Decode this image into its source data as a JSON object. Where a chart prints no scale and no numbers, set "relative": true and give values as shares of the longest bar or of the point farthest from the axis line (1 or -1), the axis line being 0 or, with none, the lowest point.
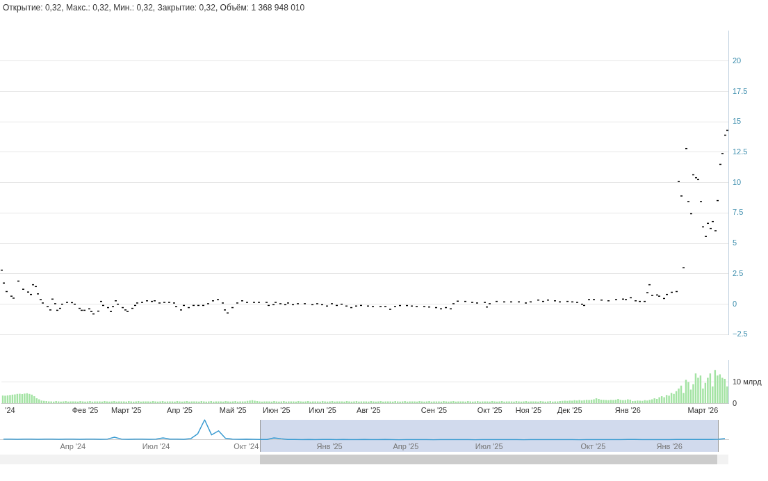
{
  "chart_data": [
    {
      "type": "candlestick",
      "title": "Открытие: 0,32, Макс.: 0,32, Мин.: 0,32, Закрытие: 0,32, Объём: 1 368 948 010",
      "color": "#000000",
      "grid": "y",
      "tick_labels": "y",
      "ylim": [
        -2.5,
        22.5
      ],
      "yticks": [
        {
          "value": -2.5,
          "label": "−2.5"
        },
        0,
        2.5,
        5,
        7.5,
        10,
        12.5,
        15,
        17.5,
        20
      ],
      "categories": [
        null,
        null,
        null,
        null,
        null,
        null,
        null,
        null,
        null,
        null,
        null,
        null,
        null,
        null,
        null,
        null,
        null,
        null,
        null,
        null,
        null,
        null,
        null,
        null,
        null,
        null,
        null,
        null,
        null,
        null,
        null,
        null,
        null,
        null,
        null,
        null,
        null,
        null,
        null,
        null,
        null,
        null,
        null,
        null,
        null,
        null,
        null,
        null,
        null,
        null,
        null,
        null,
        null,
        null,
        null,
        null,
        null,
        null,
        null,
        null,
        null,
        null,
        null,
        null,
        null,
        null,
        null,
        null,
        null,
        null,
        null,
        null,
        null,
        null,
        null,
        null,
        null,
        null,
        null,
        null,
        null,
        null,
        null,
        null,
        null,
        null,
        null,
        null,
        null,
        null,
        null,
        null,
        null,
        null,
        null,
        null,
        null,
        null,
        null,
        null,
        null,
        null,
        null,
        null,
        null,
        null,
        null,
        null,
        null,
        null,
        null,
        null,
        null,
        null,
        null,
        null,
        null,
        null,
        null,
        null,
        null,
        null,
        null,
        null,
        null,
        null,
        null,
        null,
        null,
        null,
        null,
        null,
        null,
        null,
        null,
        null,
        null,
        null,
        null,
        null,
        null,
        null,
        null,
        null,
        null,
        null,
        null,
        null,
        null,
        null,
        null,
        null,
        null,
        null,
        null,
        null,
        null,
        null,
        null,
        null,
        null,
        null,
        null,
        null,
        null,
        null,
        null,
        null,
        null,
        null,
        null,
        null,
        null,
        null,
        null,
        null,
        null,
        null,
        null,
        null,
        null,
        null,
        null,
        null,
        null,
        null,
        null,
        null,
        null,
        null,
        null,
        null,
        null,
        null,
        null,
        null,
        null,
        null,
        null,
        null,
        null,
        null,
        null,
        null,
        null,
        null,
        null,
        null,
        null,
        null,
        null,
        null,
        null,
        null,
        null,
        null,
        null,
        null,
        null,
        null,
        null,
        null,
        null,
        null,
        null,
        null,
        null,
        null,
        null,
        null,
        null,
        null,
        null,
        null,
        null,
        null,
        null,
        null,
        null,
        null,
        null,
        null,
        null,
        null,
        null,
        null,
        null,
        null,
        null,
        null,
        null,
        null,
        null,
        null,
        null,
        null,
        null,
        null,
        null,
        null,
        null,
        null,
        null,
        null,
        null,
        null,
        null,
        null,
        null,
        null,
        null,
        null,
        null,
        null,
        null,
        null,
        null,
        null,
        null,
        null,
        null,
        null,
        null,
        null,
        null,
        null,
        null,
        null,
        null,
        null,
        null,
        null,
        null,
        null,
        null,
        null,
        null,
        null,
        null,
        null
      ],
      "ohlc": [
        [
          2.8,
          2.8,
          2.8,
          2.8
        ],
        [
          1.74,
          1.74,
          1.74,
          1.74
        ],
        [
          1.04,
          1.04,
          1.04,
          1.04
        ],
        null,
        [
          0.66,
          0.66,
          0.66,
          0.66
        ],
        [
          0.5,
          0.5,
          0.5,
          0.5
        ],
        null,
        [
          1.9,
          1.9,
          1.9,
          1.9
        ],
        null,
        [
          1.23,
          1.23,
          1.23,
          1.23
        ],
        null,
        [
          1.0,
          1.0,
          1.0,
          1.0
        ],
        [
          0.8,
          0.8,
          0.8,
          0.8
        ],
        [
          1.6,
          1.6,
          1.6,
          1.6
        ],
        [
          1.45,
          1.45,
          1.45,
          1.45
        ],
        [
          0.85,
          0.85,
          0.85,
          0.85
        ],
        [
          0.38,
          0.38,
          0.38,
          0.38
        ],
        [
          0.1,
          0.1,
          0.1,
          0.1
        ],
        null,
        [
          -0.2,
          -0.2,
          -0.2,
          -0.2
        ],
        [
          -0.47,
          -0.47,
          -0.47,
          -0.47
        ],
        [
          0.42,
          0.42,
          0.42,
          0.42
        ],
        [
          0.04,
          0.04,
          0.04,
          0.04
        ],
        [
          -0.5,
          -0.5,
          -0.5,
          -0.5
        ],
        [
          -0.34,
          -0.34,
          -0.34,
          -0.34
        ],
        [
          0,
          0,
          0,
          0
        ],
        null,
        [
          0.15,
          0.15,
          0.15,
          0.15
        ],
        null,
        [
          0.13,
          0.13,
          0.13,
          0.13
        ],
        [
          0,
          0,
          0,
          0
        ],
        null,
        [
          -0.34,
          -0.34,
          -0.34,
          -0.34
        ],
        [
          -0.5,
          -0.5,
          -0.5,
          -0.5
        ],
        [
          -0.5,
          -0.5,
          -0.5,
          -0.5
        ],
        null,
        [
          -0.38,
          -0.38,
          -0.38,
          -0.38
        ],
        [
          -0.6,
          -0.6,
          -0.6,
          -0.6
        ],
        [
          -0.8,
          -0.8,
          -0.8,
          -0.8
        ],
        null,
        [
          -0.57,
          -0.57,
          -0.57,
          -0.57
        ],
        [
          0.23,
          0.23,
          0.23,
          0.23
        ],
        [
          -0.1,
          -0.1,
          -0.1,
          -0.1
        ],
        null,
        [
          -0.28,
          -0.28,
          -0.28,
          -0.28
        ],
        [
          -0.6,
          -0.6,
          -0.6,
          -0.6
        ],
        [
          -0.2,
          -0.2,
          -0.2,
          -0.2
        ],
        [
          0.28,
          0.28,
          0.28,
          0.28
        ],
        [
          0,
          0,
          0,
          0
        ],
        null,
        [
          -0.28,
          -0.28,
          -0.28,
          -0.28
        ],
        [
          -0.47,
          -0.47,
          -0.47,
          -0.47
        ],
        [
          -0.6,
          -0.6,
          -0.6,
          -0.6
        ],
        null,
        [
          -0.34,
          -0.34,
          -0.34,
          -0.34
        ],
        [
          -0.1,
          -0.1,
          -0.1,
          -0.1
        ],
        [
          0.1,
          0.1,
          0.1,
          0.1
        ],
        null,
        [
          0.15,
          0.15,
          0.15,
          0.15
        ],
        null,
        [
          0.28,
          0.28,
          0.28,
          0.28
        ],
        null,
        [
          0.23,
          0.23,
          0.23,
          0.23
        ],
        [
          0.28,
          0.28,
          0.28,
          0.28
        ],
        null,
        [
          0.1,
          0.1,
          0.1,
          0.1
        ],
        null,
        [
          0.15,
          0.15,
          0.15,
          0.15
        ],
        null,
        [
          0.15,
          0.15,
          0.15,
          0.15
        ],
        null,
        [
          0.1,
          0.1,
          0.1,
          0.1
        ],
        [
          -0.2,
          -0.2,
          -0.2,
          -0.2
        ],
        null,
        [
          -0.47,
          -0.47,
          -0.47,
          -0.47
        ],
        [
          -0.1,
          -0.1,
          -0.1,
          -0.1
        ],
        null,
        [
          -0.28,
          -0.28,
          -0.28,
          -0.28
        ],
        null,
        [
          -0.1,
          -0.1,
          -0.1,
          -0.1
        ],
        null,
        [
          -0.1,
          -0.1,
          -0.1,
          -0.1
        ],
        null,
        [
          -0.1,
          -0.1,
          -0.1,
          -0.1
        ],
        null,
        [
          0.04,
          0.04,
          0.04,
          0.04
        ],
        null,
        [
          0.28,
          0.28,
          0.28,
          0.28
        ],
        null,
        [
          0.38,
          0.38,
          0.38,
          0.38
        ],
        null,
        [
          0.1,
          0.1,
          0.1,
          0.1
        ],
        [
          -0.47,
          -0.47,
          -0.47,
          -0.47
        ],
        [
          -0.72,
          -0.72,
          -0.72,
          -0.72
        ],
        null,
        [
          -0.28,
          -0.28,
          -0.28,
          -0.28
        ],
        null,
        [
          0.1,
          0.1,
          0.1,
          0.1
        ],
        null,
        [
          0.28,
          0.28,
          0.28,
          0.28
        ],
        null,
        [
          0.15,
          0.15,
          0.15,
          0.15
        ],
        null,
        null,
        [
          0.15,
          0.15,
          0.15,
          0.15
        ],
        null,
        [
          0.15,
          0.15,
          0.15,
          0.15
        ],
        null,
        null,
        [
          0.15,
          0.15,
          0.15,
          0.15
        ],
        [
          -0.1,
          -0.1,
          -0.1,
          -0.1
        ],
        null,
        [
          -0.04,
          -0.04,
          -0.04,
          -0.04
        ],
        [
          0.15,
          0.15,
          0.15,
          0.15
        ],
        null,
        [
          0.04,
          0.04,
          0.04,
          0.04
        ],
        null,
        [
          -0.04,
          -0.04,
          -0.04,
          -0.04
        ],
        [
          0.1,
          0.1,
          0.1,
          0.1
        ],
        null,
        [
          -0.04,
          -0.04,
          -0.04,
          -0.04
        ],
        null,
        [
          0.04,
          0.04,
          0.04,
          0.04
        ],
        null,
        null,
        [
          0.04,
          0.04,
          0.04,
          0.04
        ],
        null,
        null,
        [
          -0.04,
          -0.04,
          -0.04,
          -0.04
        ],
        null,
        [
          0.04,
          0.04,
          0.04,
          0.04
        ],
        null,
        [
          -0.04,
          -0.04,
          -0.04,
          -0.04
        ],
        null,
        [
          -0.15,
          -0.15,
          -0.15,
          -0.15
        ],
        null,
        [
          0.04,
          0.04,
          0.04,
          0.04
        ],
        null,
        [
          -0.1,
          -0.1,
          -0.1,
          -0.1
        ],
        null,
        [
          0,
          0,
          0,
          0
        ],
        null,
        [
          -0.15,
          -0.15,
          -0.15,
          -0.15
        ],
        null,
        [
          -0.28,
          -0.28,
          -0.28,
          -0.28
        ],
        null,
        [
          -0.15,
          -0.15,
          -0.15,
          -0.15
        ],
        null,
        [
          -0.1,
          -0.1,
          -0.1,
          -0.1
        ],
        null,
        null,
        [
          -0.15,
          -0.15,
          -0.15,
          -0.15
        ],
        null,
        [
          -0.19,
          -0.19,
          -0.19,
          -0.19
        ],
        null,
        null,
        [
          -0.19,
          -0.19,
          -0.19,
          -0.19
        ],
        null,
        [
          -0.19,
          -0.19,
          -0.19,
          -0.19
        ],
        null,
        [
          -0.42,
          -0.42,
          -0.42,
          -0.42
        ],
        null,
        [
          -0.19,
          -0.19,
          -0.19,
          -0.19
        ],
        null,
        [
          -0.11,
          -0.11,
          -0.11,
          -0.11
        ],
        null,
        null,
        [
          -0.11,
          -0.11,
          -0.11,
          -0.11
        ],
        null,
        [
          -0.15,
          -0.15,
          -0.15,
          -0.15
        ],
        null,
        [
          -0.19,
          -0.19,
          -0.19,
          -0.19
        ],
        null,
        null,
        [
          -0.19,
          -0.19,
          -0.19,
          -0.19
        ],
        null,
        [
          -0.23,
          -0.23,
          -0.23,
          -0.23
        ],
        null,
        null,
        [
          -0.28,
          -0.28,
          -0.28,
          -0.28
        ],
        null,
        [
          -0.38,
          -0.38,
          -0.38,
          -0.38
        ],
        null,
        [
          -0.28,
          -0.28,
          -0.28,
          -0.28
        ],
        null,
        [
          -0.38,
          -0.38,
          -0.38,
          -0.38
        ],
        [
          0.04,
          0.04,
          0.04,
          0.04
        ],
        null,
        [
          0.25,
          0.25,
          0.25,
          0.25
        ],
        null,
        null,
        [
          0.23,
          0.23,
          0.23,
          0.23
        ],
        null,
        null,
        [
          0.15,
          0.15,
          0.15,
          0.15
        ],
        null,
        [
          0.1,
          0.1,
          0.1,
          0.1
        ],
        null,
        null,
        [
          0.15,
          0.15,
          0.15,
          0.15
        ],
        [
          -0.23,
          -0.23,
          -0.23,
          -0.23
        ],
        [
          0.04,
          0.04,
          0.04,
          0.04
        ],
        null,
        null,
        [
          0.23,
          0.23,
          0.23,
          0.23
        ],
        null,
        null,
        [
          0.19,
          0.19,
          0.19,
          0.19
        ],
        null,
        null,
        [
          0.19,
          0.19,
          0.19,
          0.19
        ],
        null,
        null,
        [
          0.19,
          0.19,
          0.19,
          0.19
        ],
        null,
        null,
        [
          0.1,
          0.1,
          0.1,
          0.1
        ],
        null,
        [
          0.19,
          0.19,
          0.19,
          0.19
        ],
        null,
        null,
        [
          0.34,
          0.34,
          0.34,
          0.34
        ],
        null,
        [
          0.23,
          0.23,
          0.23,
          0.23
        ],
        null,
        [
          0.34,
          0.34,
          0.34,
          0.34
        ],
        null,
        null,
        [
          0.28,
          0.28,
          0.28,
          0.28
        ],
        null,
        [
          0.19,
          0.19,
          0.19,
          0.19
        ],
        null,
        null,
        [
          0.23,
          0.23,
          0.23,
          0.23
        ],
        null,
        [
          0.19,
          0.19,
          0.19,
          0.19
        ],
        null,
        [
          0.15,
          0.15,
          0.15,
          0.15
        ],
        null,
        [
          0,
          0,
          0,
          0
        ],
        [
          -0.1,
          -0.1,
          -0.1,
          -0.1
        ],
        null,
        [
          0.38,
          0.38,
          0.38,
          0.38
        ],
        null,
        [
          0.38,
          0.38,
          0.38,
          0.38
        ],
        null,
        null,
        [
          0.34,
          0.34,
          0.34,
          0.34
        ],
        null,
        null,
        [
          0.28,
          0.28,
          0.28,
          0.28
        ],
        null,
        null,
        [
          0.38,
          0.38,
          0.38,
          0.38
        ],
        null,
        null,
        [
          0.42,
          0.42,
          0.42,
          0.42
        ],
        [
          0.38,
          0.38,
          0.38,
          0.38
        ],
        null,
        [
          0.53,
          0.53,
          0.53,
          0.53
        ],
        null,
        [
          0.28,
          0.28,
          0.28,
          0.28
        ],
        null,
        [
          0.23,
          0.23,
          0.23,
          0.23
        ],
        null,
        [
          0.23,
          0.23,
          0.23,
          0.23
        ],
        [
          0.95,
          0.95,
          0.95,
          0.95
        ],
        [
          1.6,
          1.6,
          1.6,
          1.6
        ],
        [
          0.72,
          0.72,
          0.72,
          0.72
        ],
        null,
        [
          0.76,
          0.76,
          0.76,
          0.76
        ],
        [
          0.66,
          0.66,
          0.66,
          0.66
        ],
        null,
        [
          0.47,
          0.47,
          0.47,
          0.47
        ],
        [
          0.8,
          0.8,
          0.8,
          0.8
        ],
        null,
        [
          0.98,
          0.98,
          0.98,
          0.98
        ],
        null,
        [
          1.04,
          1.04,
          1.04,
          1.04
        ],
        [
          10.08,
          10.08,
          10.08,
          10.08
        ],
        [
          8.9,
          8.9,
          8.9,
          8.9
        ],
        [
          3.0,
          3.0,
          3.0,
          3.0
        ],
        [
          12.8,
          12.8,
          12.8,
          12.8
        ],
        [
          8.44,
          8.44,
          8.44,
          8.44
        ],
        [
          7.44,
          7.44,
          7.44,
          7.44
        ],
        [
          10.64,
          10.64,
          10.64,
          10.64
        ],
        [
          10.4,
          10.4,
          10.4,
          10.4
        ],
        [
          10.25,
          10.25,
          10.25,
          10.25
        ],
        [
          8.44,
          8.44,
          8.44,
          8.44
        ],
        [
          6.36,
          6.36,
          6.36,
          6.36
        ],
        [
          5.57,
          5.57,
          5.57,
          5.57
        ],
        [
          6.65,
          6.65,
          6.65,
          6.65
        ],
        [
          6.23,
          6.23,
          6.23,
          6.23
        ],
        [
          6.8,
          6.8,
          6.8,
          6.8
        ],
        [
          6.04,
          6.04,
          6.04,
          6.04
        ],
        [
          8.52,
          8.52,
          8.52,
          8.52
        ],
        [
          11.5,
          11.5,
          11.5,
          11.5
        ],
        [
          12.39,
          12.39,
          12.39,
          12.39
        ],
        [
          13.9,
          13.9,
          13.9,
          13.9
        ],
        [
          14.3,
          14.3,
          14.3,
          14.3
        ]
      ]
    },
    {
      "type": "bar",
      "color": "#a3e3a3",
      "grid": "y",
      "ylim": [
        0,
        20
      ],
      "yticks": [
        0,
        {
          "value": 10,
          "label": "10 млрд"
        }
      ],
      "categories": [
        null,
        null,
        null,
        "'24",
        null,
        null,
        null,
        null,
        null,
        null,
        null,
        null,
        null,
        null,
        null,
        null,
        null,
        null,
        null,
        null,
        null,
        null,
        null,
        null,
        null,
        null,
        null,
        null,
        null,
        null,
        null,
        null,
        null,
        null,
        "Фев '25",
        null,
        null,
        null,
        null,
        null,
        null,
        null,
        null,
        null,
        null,
        null,
        null,
        null,
        null,
        null,
        null,
        "Март '25",
        null,
        null,
        null,
        null,
        null,
        null,
        null,
        null,
        null,
        null,
        null,
        null,
        null,
        null,
        null,
        null,
        null,
        null,
        null,
        null,
        null,
        "Апр '25",
        null,
        null,
        null,
        null,
        null,
        null,
        null,
        null,
        null,
        null,
        null,
        null,
        null,
        null,
        null,
        null,
        null,
        null,
        null,
        null,
        null,
        "Май '25",
        null,
        null,
        null,
        null,
        null,
        null,
        null,
        null,
        null,
        null,
        null,
        null,
        null,
        null,
        null,
        null,
        null,
        "Июн '25",
        null,
        null,
        null,
        null,
        null,
        null,
        null,
        null,
        null,
        null,
        null,
        null,
        null,
        null,
        null,
        null,
        null,
        null,
        "Июл '25",
        null,
        null,
        null,
        null,
        null,
        null,
        null,
        null,
        null,
        null,
        null,
        null,
        null,
        null,
        null,
        null,
        null,
        null,
        "Авг '25",
        null,
        null,
        null,
        null,
        null,
        null,
        null,
        null,
        null,
        null,
        null,
        null,
        null,
        null,
        null,
        null,
        null,
        null,
        null,
        null,
        null,
        null,
        null,
        null,
        null,
        null,
        "Сен '25",
        null,
        null,
        null,
        null,
        null,
        null,
        null,
        null,
        null,
        null,
        null,
        null,
        null,
        null,
        null,
        null,
        null,
        null,
        null,
        null,
        null,
        null,
        "Окт '25",
        null,
        null,
        null,
        null,
        null,
        null,
        null,
        null,
        null,
        null,
        null,
        null,
        null,
        null,
        null,
        "Ноя '25",
        null,
        null,
        null,
        null,
        null,
        null,
        null,
        null,
        null,
        null,
        null,
        null,
        null,
        null,
        null,
        null,
        "Дек '25",
        null,
        null,
        null,
        null,
        null,
        null,
        null,
        null,
        null,
        null,
        null,
        null,
        null,
        null,
        null,
        null,
        null,
        null,
        null,
        null,
        null,
        null,
        null,
        "Янв '26",
        null,
        null,
        null,
        null,
        null,
        null,
        null,
        null,
        null,
        null,
        null,
        null,
        null,
        null,
        null,
        null,
        null,
        null,
        null,
        null,
        null,
        null,
        null,
        null,
        null,
        null,
        null,
        null,
        null,
        null,
        "Март '26",
        null,
        null,
        null,
        null,
        null,
        null,
        null,
        null,
        null,
        null
      ],
      "values": [
        3.8,
        3.7,
        3.9,
        4,
        4.2,
        4.3,
        4.5,
        4.6,
        4.4,
        4.7,
        4.8,
        4.5,
        4.2,
        3.5,
        2.5,
        2,
        1.5,
        1.3,
        1.2,
        1.1,
        1.1,
        1,
        1.2,
        1.1,
        1,
        1.1,
        1.2,
        1,
        1.1,
        1.1,
        1.1,
        1,
        1.2,
        1.1,
        1,
        1.1,
        1.2,
        1,
        1.1,
        1.1,
        1.1,
        1,
        1.2,
        1.1,
        1,
        1.1,
        1.2,
        1,
        1.1,
        1.1,
        1.1,
        1,
        1.2,
        1.1,
        1,
        1.1,
        1.2,
        1,
        1.1,
        1.1,
        1.1,
        1,
        1.2,
        1.1,
        1,
        1.1,
        1.2,
        1,
        1.1,
        1.1,
        1.1,
        1,
        1.2,
        1.1,
        1,
        1.1,
        1.2,
        1,
        1.1,
        1.1,
        1.1,
        1,
        1.2,
        1.1,
        1,
        1.1,
        1.2,
        1,
        1.1,
        1.1,
        1.1,
        1,
        1.2,
        1.1,
        1,
        1.1,
        1.2,
        1,
        1.1,
        1.1,
        1.1,
        1.3,
        1.5,
        1.6,
        1.4,
        1.2,
        1.1,
        1,
        1.1,
        1.1,
        1.1,
        1,
        1.2,
        1.1,
        1,
        1.1,
        1.2,
        1,
        1.1,
        1.1,
        1.1,
        1,
        1.2,
        1.1,
        1,
        1.1,
        1.2,
        1,
        1.1,
        1.1,
        1.1,
        1,
        1.2,
        1.1,
        1,
        1.1,
        1.2,
        1,
        1.1,
        1.1,
        1.1,
        1,
        1.2,
        1.1,
        1,
        1.1,
        1.2,
        1,
        1.1,
        1.1,
        1.1,
        1,
        1.2,
        1.1,
        1,
        1.1,
        1.2,
        1,
        1.1,
        1.1,
        1.1,
        1,
        1.2,
        1.1,
        1,
        1.1,
        1.2,
        1,
        1.1,
        1.1,
        1.1,
        1,
        1.2,
        1.1,
        1,
        1.1,
        1.2,
        1,
        1.1,
        1.1,
        1.1,
        1,
        1.2,
        1.1,
        1,
        1.1,
        1.2,
        1,
        1.1,
        1.1,
        1.1,
        1,
        1.2,
        1.1,
        1,
        1.1,
        1.2,
        1,
        1.1,
        1.1,
        1.1,
        1,
        1.2,
        1.1,
        1,
        1.1,
        1.2,
        1,
        1.1,
        1.1,
        1.1,
        1,
        1.2,
        1.1,
        1,
        1.1,
        1.2,
        1,
        1.1,
        1.1,
        1.1,
        1,
        1.2,
        1.1,
        1,
        1.1,
        1.2,
        1,
        1.1,
        1.1,
        1.2,
        1.3,
        1.4,
        1.3,
        1.5,
        1.4,
        1.6,
        1.5,
        1.7,
        1.5,
        1.6,
        1.8,
        1.7,
        1.9,
        2,
        2.5,
        2.2,
        1.9,
        1.8,
        1.7,
        1.6,
        1.8,
        1.7,
        1.9,
        2.2,
        1.8,
        1.6,
        1.7,
        2,
        1.9,
        1.2,
        1.3,
        1.5,
        1.4,
        1.3,
        1.6,
        1.5,
        1.8,
        2,
        2.5,
        2.2,
        3,
        3.5,
        3,
        4,
        3.7,
        5,
        4.5,
        5.8,
        7,
        8.4,
        5,
        11,
        10,
        6.5,
        9,
        14,
        12,
        13,
        7,
        9.7,
        12,
        14,
        8,
        15.6,
        13,
        13.6,
        12,
        11.5,
        8
      ]
    },
    {
      "type": "line",
      "color": "#3a9bd1",
      "relative": true,
      "tick_labels": "x",
      "categories": [
        null,
        null,
        null,
        null,
        null,
        null,
        null,
        null,
        null,
        null,
        "Апр '24",
        null,
        null,
        null,
        null,
        null,
        null,
        null,
        null,
        null,
        null,
        null,
        "Июл '24",
        null,
        null,
        null,
        null,
        null,
        null,
        null,
        null,
        null,
        null,
        null,
        null,
        "Окт '24",
        null,
        null,
        null,
        null,
        null,
        null,
        null,
        null,
        null,
        null,
        null,
        "Янв '25",
        null,
        null,
        null,
        null,
        null,
        null,
        null,
        null,
        null,
        null,
        "Апр '25",
        null,
        null,
        null,
        null,
        null,
        null,
        null,
        null,
        null,
        null,
        null,
        "Июл '25",
        null,
        null,
        null,
        null,
        null,
        null,
        null,
        null,
        null,
        null,
        null,
        null,
        null,
        null,
        "Окт '25",
        null,
        null,
        null,
        null,
        null,
        null,
        null,
        null,
        null,
        null,
        "Янв '26",
        null,
        null,
        null,
        null,
        null,
        null,
        null,
        null
      ],
      "values": [
        0.04,
        0.04,
        0.03,
        0.04,
        0.04,
        0.03,
        0.04,
        0.04,
        0.03,
        0.04,
        0.04,
        0.03,
        0.04,
        0.04,
        0.03,
        0.04,
        0.13,
        0.04,
        0.03,
        0.04,
        0.04,
        0.03,
        0.04,
        0.1,
        0.04,
        0.04,
        0.03,
        0.06,
        0.3,
        1,
        0.25,
        0.45,
        0.08,
        0.04,
        0.03,
        0.04,
        0.03,
        0.02,
        0.02,
        0.1,
        0.05,
        0.02,
        0.02,
        0.01,
        0.02,
        0.01,
        0.02,
        0.02,
        0.01,
        0.02,
        0.01,
        0.01,
        0.02,
        0.01,
        0.01,
        0.02,
        0.01,
        0,
        0.01,
        0.01,
        0.01,
        0.01,
        0,
        0.01,
        0.01,
        0.01,
        0.01,
        0.01,
        0,
        0.01,
        0.01,
        0.01,
        0.01,
        0.01,
        0.01,
        0,
        0.01,
        0.01,
        0.01,
        0.01,
        0.01,
        0.01,
        0.01,
        0,
        0.01,
        0.01,
        0.01,
        0.01,
        0.01,
        0.01,
        0.02,
        0.02,
        0.01,
        0.01,
        0.01,
        0.01,
        0.01,
        0.02,
        0.02,
        0.02,
        0.02,
        0.02,
        0.02,
        0.03,
        0.06
      ]
    }
  ]
}
